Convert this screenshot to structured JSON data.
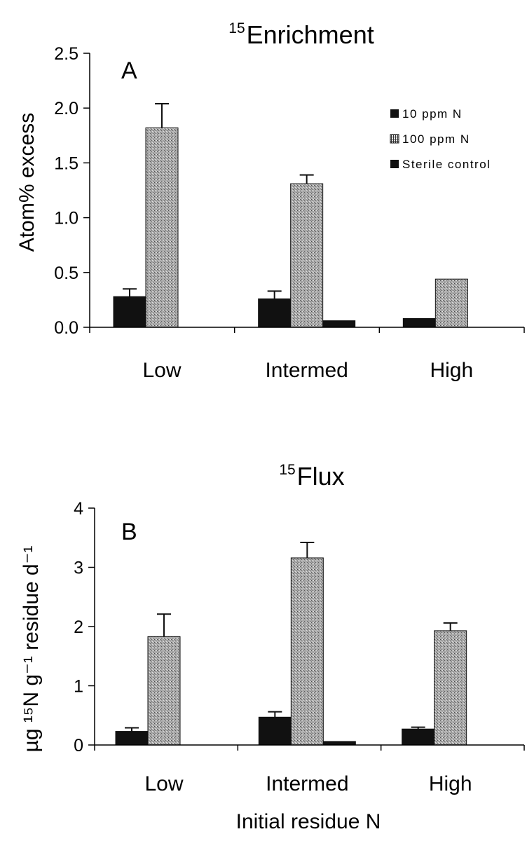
{
  "chart_data": [
    {
      "type": "bar",
      "title": "Enrichment",
      "title_superscript": "15",
      "panel_label": "A",
      "ylabel": "Atom% excess",
      "xlabel": "",
      "ylim": [
        0,
        2.5
      ],
      "yticks": [
        "0.0",
        "0.5",
        "1.0",
        "1.5",
        "2.0",
        "2.5"
      ],
      "categories": [
        "Low",
        "Intermed",
        "High"
      ],
      "legend_position": "top-right",
      "series": [
        {
          "name": "10 ppm N",
          "color": "#111111",
          "pattern": "solid",
          "values": [
            0.28,
            0.26,
            0.08
          ],
          "errors": [
            0.07,
            0.07,
            0
          ]
        },
        {
          "name": "100 ppm N",
          "color": "#9a9a9a",
          "pattern": "stipple",
          "values": [
            1.82,
            1.31,
            0.44
          ],
          "errors": [
            0.22,
            0.08,
            0
          ]
        },
        {
          "name": "Sterile control",
          "color": "#111111",
          "pattern": "solid",
          "values": [
            0,
            0.06,
            0
          ],
          "errors": [
            0,
            0,
            0
          ]
        }
      ]
    },
    {
      "type": "bar",
      "title": "Flux",
      "title_superscript": "15",
      "panel_label": "B",
      "ylabel": "µg ¹⁵N g⁻¹ residue d⁻¹",
      "xlabel": "Initial residue N",
      "ylim": [
        0,
        4
      ],
      "yticks": [
        "0",
        "1",
        "2",
        "3",
        "4"
      ],
      "categories": [
        "Low",
        "Intermed",
        "High"
      ],
      "series": [
        {
          "color": "#111111",
          "pattern": "solid",
          "values": [
            0.23,
            0.47,
            0.27
          ],
          "errors": [
            0.06,
            0.09,
            0.03
          ]
        },
        {
          "color": "#9a9a9a",
          "pattern": "stipple",
          "values": [
            1.83,
            3.16,
            1.93
          ],
          "errors": [
            0.38,
            0.26,
            0.13
          ]
        },
        {
          "color": "#111111",
          "pattern": "solid",
          "values": [
            0,
            0.06,
            0
          ],
          "errors": [
            0,
            0,
            0
          ]
        }
      ]
    }
  ]
}
